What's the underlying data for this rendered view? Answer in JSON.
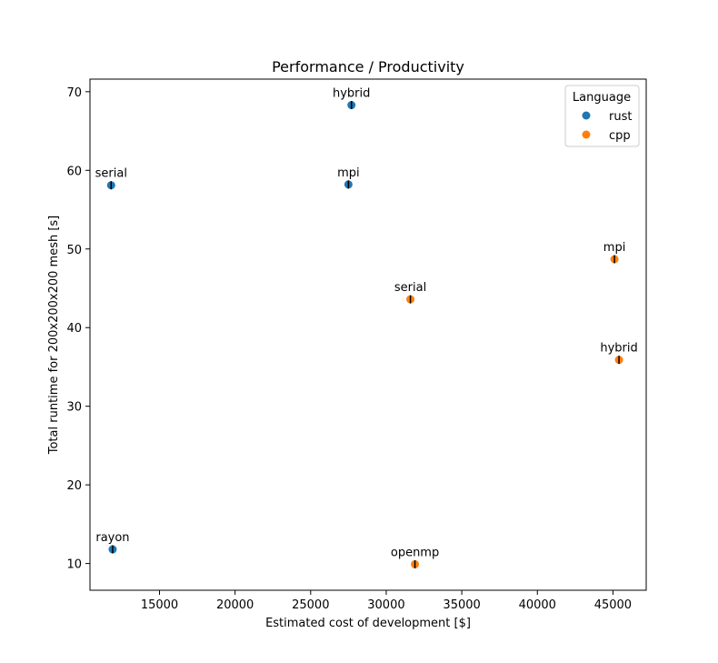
{
  "chart_data": {
    "type": "scatter",
    "title": "Performance / Productivity",
    "xlabel": "Estimated cost of development [$]",
    "ylabel": "Total runtime for 200x200x200 mesh [s]",
    "xlim": [
      10400,
      47200
    ],
    "ylim": [
      6.6,
      71.6
    ],
    "xticks": [
      15000,
      20000,
      25000,
      30000,
      35000,
      40000,
      45000
    ],
    "yticks": [
      10,
      20,
      30,
      40,
      50,
      60,
      70
    ],
    "grid": false,
    "legend": {
      "title": "Language",
      "placement": "top-right",
      "entries": [
        {
          "name": "rust",
          "color": "#1f77b4"
        },
        {
          "name": "cpp",
          "color": "#ff7f0e"
        }
      ]
    },
    "series": [
      {
        "name": "rust",
        "color": "#1f77b4",
        "points": [
          {
            "label": "serial",
            "x": 11800,
            "y": 58.1
          },
          {
            "label": "rayon",
            "x": 11900,
            "y": 11.8
          },
          {
            "label": "mpi",
            "x": 27500,
            "y": 58.2
          },
          {
            "label": "hybrid",
            "x": 27700,
            "y": 68.3
          }
        ]
      },
      {
        "name": "cpp",
        "color": "#ff7f0e",
        "points": [
          {
            "label": "serial",
            "x": 31600,
            "y": 43.6
          },
          {
            "label": "openmp",
            "x": 31900,
            "y": 9.9
          },
          {
            "label": "mpi",
            "x": 45100,
            "y": 48.7
          },
          {
            "label": "hybrid",
            "x": 45400,
            "y": 35.9
          }
        ]
      }
    ]
  }
}
